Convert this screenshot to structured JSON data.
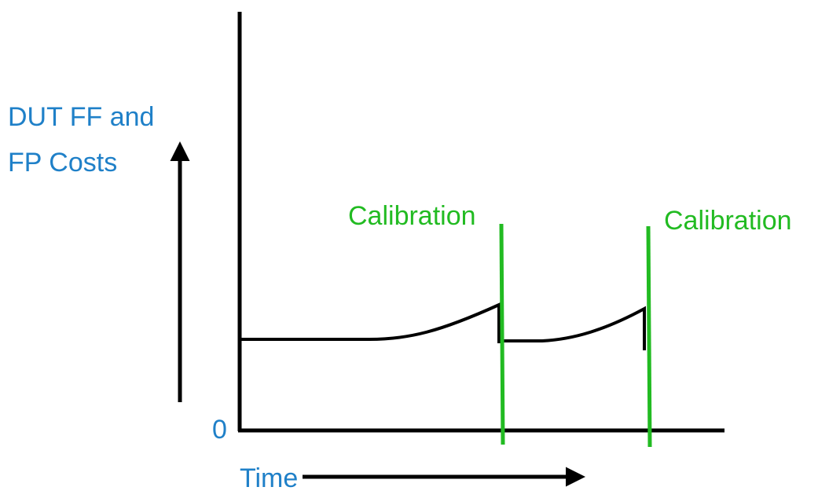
{
  "y_axis_label": [
    "DUT FF and",
    "FP Costs"
  ],
  "origin_label": "0",
  "x_axis_label": "Time",
  "markers": [
    {
      "label": "Calibration"
    },
    {
      "label": "Calibration"
    }
  ]
}
